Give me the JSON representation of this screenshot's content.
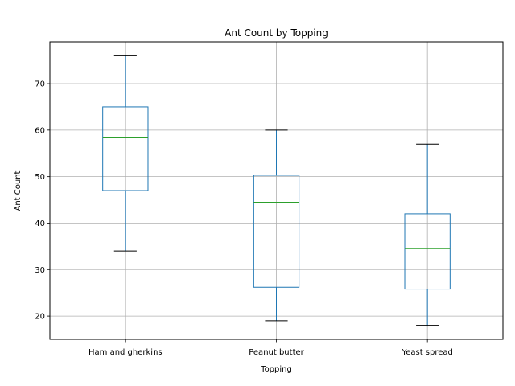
{
  "chart_data": {
    "type": "box",
    "title": "Ant Count by Topping",
    "xlabel": "Topping",
    "ylabel": "Ant Count",
    "categories": [
      "Ham and gherkins",
      "Peanut butter",
      "Yeast spread"
    ],
    "ylim": [
      15,
      79
    ],
    "yticks": [
      20,
      30,
      40,
      50,
      60,
      70
    ],
    "grid": true,
    "boxes": [
      {
        "category": "Ham and gherkins",
        "whisker_low": 34,
        "q1": 47,
        "median": 58.5,
        "q3": 65,
        "whisker_high": 76
      },
      {
        "category": "Peanut butter",
        "whisker_low": 19,
        "q1": 26.2,
        "median": 44.5,
        "q3": 50.3,
        "whisker_high": 60
      },
      {
        "category": "Yeast spread",
        "whisker_low": 18,
        "q1": 25.8,
        "median": 34.5,
        "q3": 42,
        "whisker_high": 57
      }
    ],
    "colors": {
      "box": "#1f77b4",
      "median": "#2ca02c",
      "caps": "#000000",
      "grid": "#b0b0b0"
    }
  }
}
